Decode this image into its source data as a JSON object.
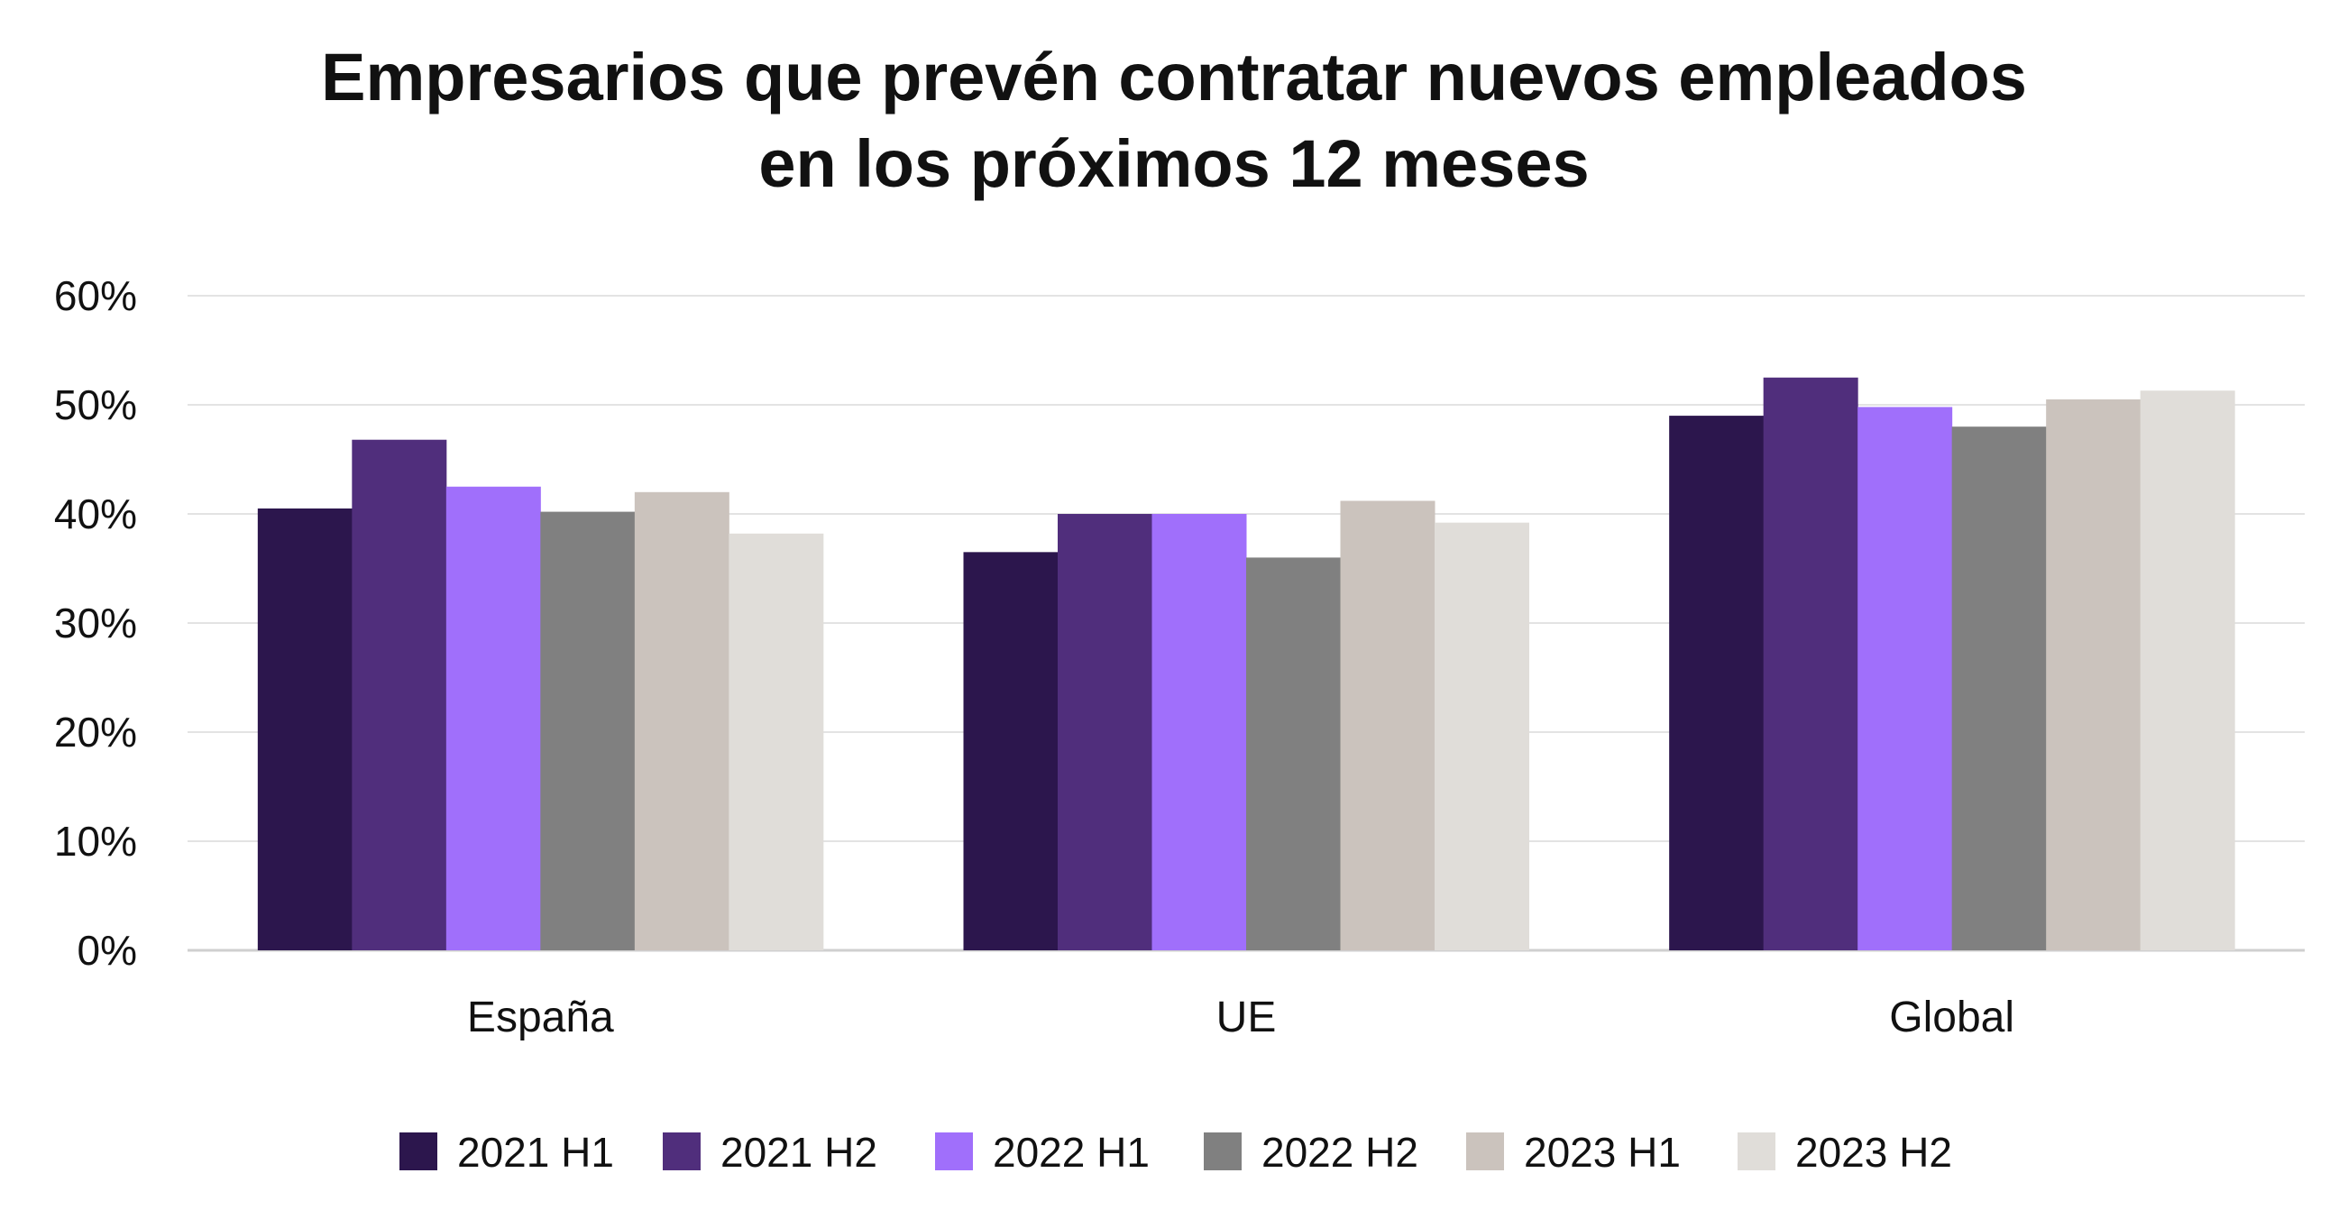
{
  "chart_data": {
    "type": "bar",
    "title_lines": [
      "Empresarios que prevén contratar nuevos empleados",
      "en los próximos 12 meses"
    ],
    "xlabel": "",
    "ylabel": "",
    "categories": [
      "España",
      "UE",
      "Global"
    ],
    "series": [
      {
        "name": "2021 H1",
        "color": "#2c164d",
        "values": [
          40.5,
          36.5,
          49
        ]
      },
      {
        "name": "2021 H2",
        "color": "#502e7c",
        "values": [
          46.8,
          40,
          52.5
        ]
      },
      {
        "name": "2022 H1",
        "color": "#a06ffb",
        "values": [
          42.5,
          40,
          49.8
        ]
      },
      {
        "name": "2022 H2",
        "color": "#808080",
        "values": [
          40.2,
          36,
          48
        ]
      },
      {
        "name": "2023 H1",
        "color": "#cbc3bd",
        "values": [
          42,
          41.2,
          50.5
        ]
      },
      {
        "name": "2023 H2",
        "color": "#e0ddd9",
        "values": [
          38.2,
          39.2,
          51.3
        ]
      }
    ],
    "ylim": [
      0,
      60
    ],
    "yticks": [
      0,
      10,
      20,
      30,
      40,
      50,
      60
    ],
    "ytick_labels": [
      "0%",
      "10%",
      "20%",
      "30%",
      "40%",
      "50%",
      "60%"
    ],
    "grid": true,
    "legend_position": "bottom"
  }
}
